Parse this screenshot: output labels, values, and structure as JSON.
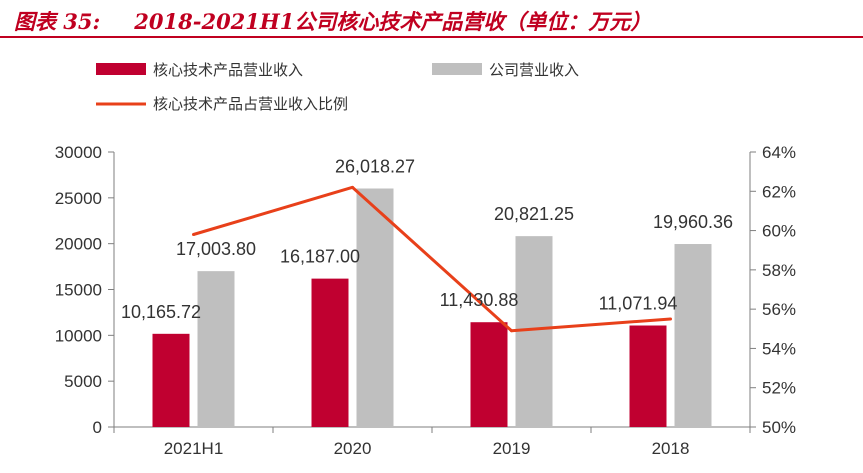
{
  "figure": {
    "label": "图表 35:",
    "title": "2018-2021H1公司核心技术产品营收（单位：万元）"
  },
  "chart_data": {
    "type": "bar",
    "categories": [
      "2021H1",
      "2020",
      "2019",
      "2018"
    ],
    "series": [
      {
        "name": "核心技术产品营业收入",
        "type": "bar",
        "axis": "left",
        "color": "#c00030",
        "values": [
          10165.72,
          16187.0,
          11430.88,
          11071.94
        ],
        "labels": [
          "10,165.72",
          "16,187.00",
          "11,430.88",
          "11,071.94"
        ]
      },
      {
        "name": "公司营业收入",
        "type": "bar",
        "axis": "left",
        "color": "#bfbfbf",
        "values": [
          17003.8,
          26018.27,
          20821.25,
          19960.36
        ],
        "labels": [
          "17,003.80",
          "26,018.27",
          "20,821.25",
          "19,960.36"
        ]
      },
      {
        "name": "核心技术产品占营业收入比例",
        "type": "line",
        "axis": "right",
        "color": "#e8401a",
        "values": [
          59.8,
          62.2,
          54.9,
          55.5
        ]
      }
    ],
    "y_left": {
      "min": 0,
      "max": 30000,
      "ticks": [
        "0",
        "5000",
        "10000",
        "15000",
        "20000",
        "25000",
        "30000"
      ]
    },
    "y_right": {
      "min": 50,
      "max": 64,
      "ticks": [
        "50%",
        "52%",
        "54%",
        "56%",
        "58%",
        "60%",
        "62%",
        "64%"
      ]
    },
    "legend_position": "top-left",
    "grid": false
  }
}
